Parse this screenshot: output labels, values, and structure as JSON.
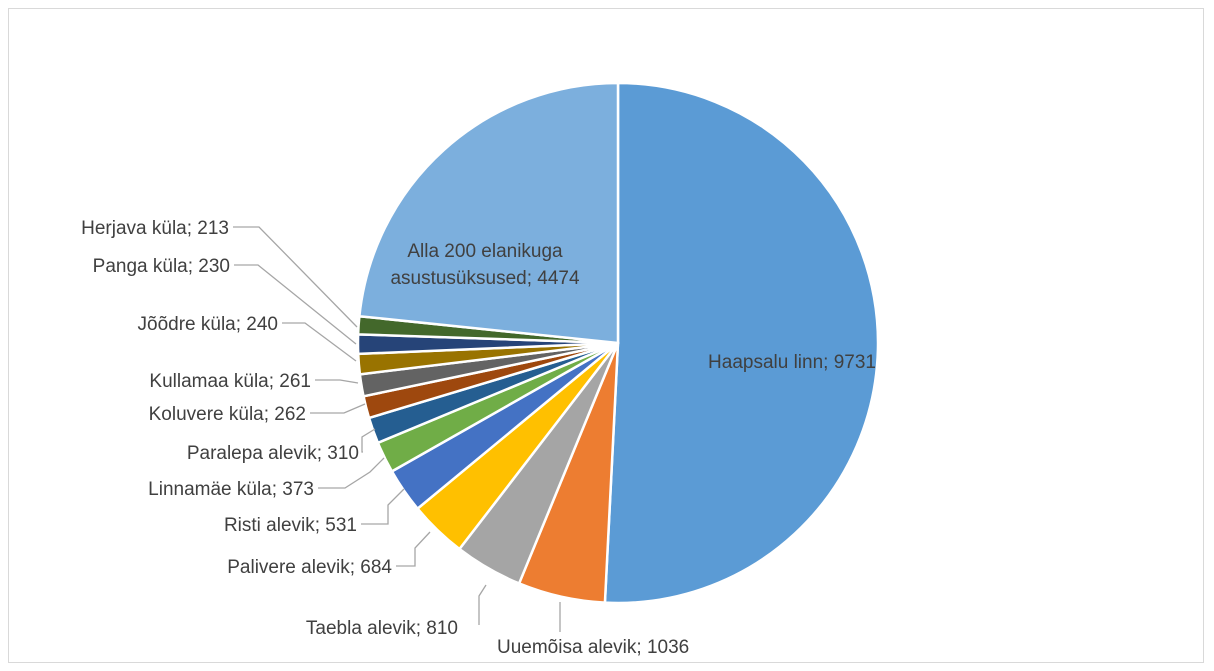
{
  "chart_data": {
    "type": "pie",
    "title": "",
    "slices": [
      {
        "label": "Haapsalu linn",
        "value": 9731,
        "color": "#5b9bd5"
      },
      {
        "label": "Uuemõisa alevik",
        "value": 1036,
        "color": "#ed7d31"
      },
      {
        "label": "Taebla alevik",
        "value": 810,
        "color": "#a5a5a5"
      },
      {
        "label": "Palivere alevik",
        "value": 684,
        "color": "#ffc000"
      },
      {
        "label": "Risti alevik",
        "value": 531,
        "color": "#4472c4"
      },
      {
        "label": "Linnamäe küla",
        "value": 373,
        "color": "#70ad47"
      },
      {
        "label": "Paralepa alevik",
        "value": 310,
        "color": "#255e91"
      },
      {
        "label": "Koluvere küla",
        "value": 262,
        "color": "#9e480e"
      },
      {
        "label": "Kullamaa küla",
        "value": 261,
        "color": "#636363"
      },
      {
        "label": "Jõõdre küla",
        "value": 240,
        "color": "#997300"
      },
      {
        "label": "Panga küla",
        "value": 230,
        "color": "#264478"
      },
      {
        "label": "Herjava küla",
        "value": 213,
        "color": "#43682b"
      },
      {
        "label": "Alla 200 elanikuga asustusüksused",
        "value": 4474,
        "color": "#7cafdd"
      }
    ],
    "data_labels": [
      "Haapsalu linn; 9731",
      "Uuemõisa alevik; 1036",
      "Taebla alevik; 810",
      "Palivere alevik; 684",
      "Risti alevik; 531",
      "Linnamäe küla; 373",
      "Paralepa alevik; 310",
      "Koluvere küla; 262",
      "Kullamaa küla; 261",
      "Jõõdre küla; 240",
      "Panga küla; 230",
      "Herjava küla; 213",
      [
        "Alla 200 elanikuga",
        "asustusüksused; 4474"
      ]
    ],
    "label_color": "#404040",
    "legend": "none"
  }
}
